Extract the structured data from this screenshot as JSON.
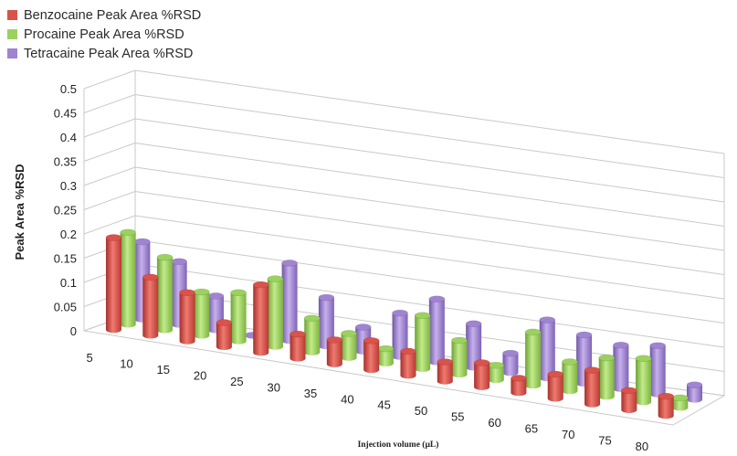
{
  "chart_data": {
    "type": "bar",
    "title": "",
    "xlabel": "Injection volume (µL)",
    "ylabel": "Peak Area %RSD",
    "ylim": [
      0,
      0.5
    ],
    "yticks": [
      "0",
      "0.05",
      "0.1",
      "0.15",
      "0.2",
      "0.25",
      "0.3",
      "0.35",
      "0.4",
      "0.45",
      "0.5"
    ],
    "categories": [
      "5",
      "10",
      "15",
      "20",
      "25",
      "30",
      "35",
      "40",
      "45",
      "50",
      "55",
      "60",
      "65",
      "70",
      "75",
      "80"
    ],
    "legend_position": "top-left",
    "series": [
      {
        "name": "Benzocaine Peak Area %RSD",
        "color": "#d9534a",
        "values": [
          0.19,
          0.12,
          0.1,
          0.05,
          0.14,
          0.05,
          0.05,
          0.06,
          0.05,
          0.04,
          0.05,
          0.03,
          0.05,
          0.07,
          0.04,
          0.04
        ]
      },
      {
        "name": "Procaine Peak Area %RSD",
        "color": "#9bd15e",
        "values": [
          0.19,
          0.15,
          0.09,
          0.1,
          0.14,
          0.07,
          0.05,
          0.03,
          0.11,
          0.07,
          0.03,
          0.11,
          0.06,
          0.08,
          0.09,
          0.02
        ]
      },
      {
        "name": "Tetracaine Peak Area %RSD",
        "color": "#a084d1",
        "values": [
          0.16,
          0.13,
          0.07,
          0.0,
          0.16,
          0.1,
          0.05,
          0.09,
          0.13,
          0.09,
          0.04,
          0.12,
          0.1,
          0.09,
          0.1,
          0.03
        ]
      }
    ]
  }
}
